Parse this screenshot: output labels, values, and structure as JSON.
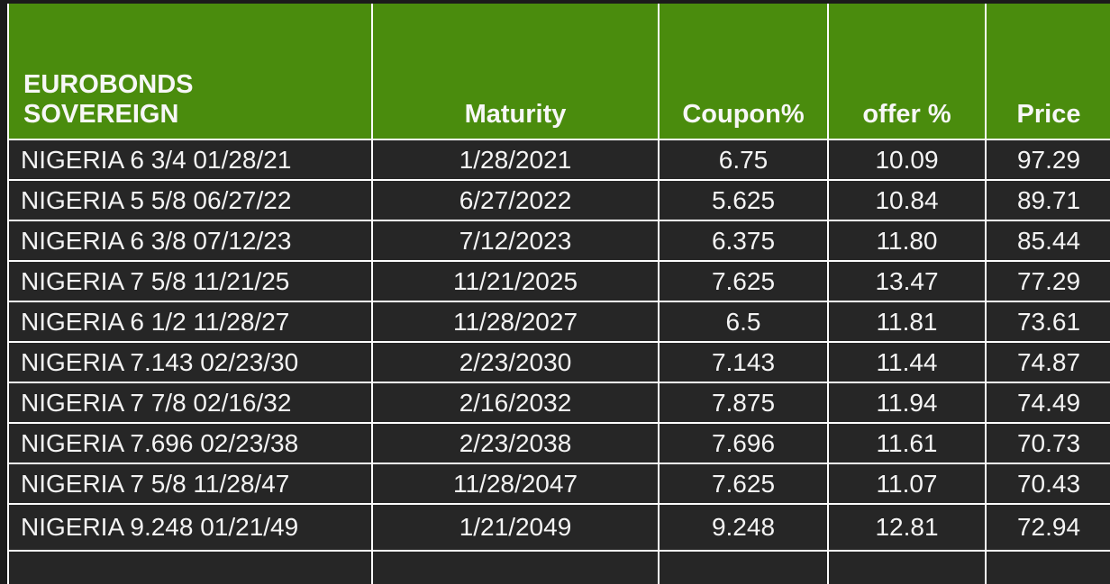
{
  "table": {
    "title": "EUROBONDS",
    "header": {
      "name_label": "SOVEREIGN",
      "maturity_label": "Maturity",
      "coupon_label": "Coupon%",
      "offer_label": "offer %",
      "price_label": "Price"
    },
    "colors": {
      "header_bg": "#4a8c0d",
      "row_bg": "#262626",
      "grid": "#fcfcfc",
      "page_bg": "#1b1b1b",
      "text": "#f4f4f4"
    },
    "rows": [
      {
        "name": "NIGERIA 6 3/4 01/28/21",
        "maturity": "1/28/2021",
        "coupon": "6.75",
        "offer": "10.09",
        "price": "97.29"
      },
      {
        "name": "NIGERIA 5 5/8 06/27/22",
        "maturity": "6/27/2022",
        "coupon": "5.625",
        "offer": "10.84",
        "price": "89.71"
      },
      {
        "name": "NIGERIA 6 3/8 07/12/23",
        "maturity": "7/12/2023",
        "coupon": "6.375",
        "offer": "11.80",
        "price": "85.44"
      },
      {
        "name": "NIGERIA 7 5/8 11/21/25",
        "maturity": "11/21/2025",
        "coupon": "7.625",
        "offer": "13.47",
        "price": "77.29"
      },
      {
        "name": "NIGERIA 6 1/2 11/28/27",
        "maturity": "11/28/2027",
        "coupon": "6.5",
        "offer": "11.81",
        "price": "73.61"
      },
      {
        "name": "NIGERIA 7.143 02/23/30",
        "maturity": "2/23/2030",
        "coupon": "7.143",
        "offer": "11.44",
        "price": "74.87"
      },
      {
        "name": "NIGERIA 7 7/8 02/16/32",
        "maturity": "2/16/2032",
        "coupon": "7.875",
        "offer": "11.94",
        "price": "74.49"
      },
      {
        "name": "NIGERIA 7.696 02/23/38",
        "maturity": "2/23/2038",
        "coupon": "7.696",
        "offer": "11.61",
        "price": "70.73"
      },
      {
        "name": "NIGERIA 7 5/8 11/28/47",
        "maturity": "11/28/2047",
        "coupon": "7.625",
        "offer": "11.07",
        "price": "70.43"
      },
      {
        "name": "NIGERIA 9.248 01/21/49",
        "maturity": "1/21/2049",
        "coupon": "9.248",
        "offer": "12.81",
        "price": "72.94"
      }
    ]
  }
}
